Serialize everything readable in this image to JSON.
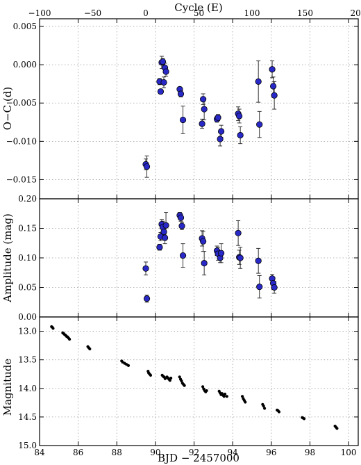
{
  "chart_data": [
    {
      "type": "scatter",
      "panel": "top",
      "ylabel": "O−C (d)",
      "xlabel_top": "Cycle (E)",
      "x_top_ticks": [
        "−100",
        "−50",
        "0",
        "50",
        "100",
        "150",
        "200"
      ],
      "x_top_range": [
        -100,
        200
      ],
      "y_ticks": [
        "−0.015",
        "−0.010",
        "−0.005",
        "0.000",
        "0.005"
      ],
      "ylim": [
        -0.0175,
        0.006
      ],
      "grid": true,
      "marker_color": "#2929c8",
      "x_unit": "cycle",
      "points": [
        {
          "x": 0,
          "y": -0.013,
          "err": 0.0007
        },
        {
          "x": 1,
          "y": -0.0133,
          "err": 0.0014
        },
        {
          "x": 13,
          "y": -0.0022,
          "err": 0.0004
        },
        {
          "x": 14,
          "y": -0.0035,
          "err": 0.0003
        },
        {
          "x": 15,
          "y": 0.0003,
          "err": 0.0008
        },
        {
          "x": 16,
          "y": 0.0004,
          "err": 0.0004
        },
        {
          "x": 17,
          "y": -0.0023,
          "err": 0.0007
        },
        {
          "x": 18,
          "y": -0.0004,
          "err": 0.0006
        },
        {
          "x": 19,
          "y": -0.0009,
          "err": 0.0006
        },
        {
          "x": 32,
          "y": -0.0032,
          "err": 0.0003
        },
        {
          "x": 33,
          "y": -0.0038,
          "err": 0.0004
        },
        {
          "x": 35,
          "y": -0.0072,
          "err": 0.0018
        },
        {
          "x": 53,
          "y": -0.0077,
          "err": 0.0006
        },
        {
          "x": 54,
          "y": -0.0045,
          "err": 0.0007
        },
        {
          "x": 55,
          "y": -0.0058,
          "err": 0.0014
        },
        {
          "x": 67,
          "y": -0.0071,
          "err": 0.0004
        },
        {
          "x": 68,
          "y": -0.0069,
          "err": 0.0004
        },
        {
          "x": 70,
          "y": -0.0097,
          "err": 0.0009
        },
        {
          "x": 71,
          "y": -0.0087,
          "err": 0.0008
        },
        {
          "x": 87,
          "y": -0.0064,
          "err": 0.0009
        },
        {
          "x": 88,
          "y": -0.0067,
          "err": 0.0009
        },
        {
          "x": 89,
          "y": -0.0092,
          "err": 0.0011
        },
        {
          "x": 106,
          "y": -0.0022,
          "err": 0.0027
        },
        {
          "x": 107,
          "y": -0.0078,
          "err": 0.0017
        },
        {
          "x": 119,
          "y": -0.0006,
          "err": 0.0011
        },
        {
          "x": 120,
          "y": -0.0028,
          "err": 0.0012
        },
        {
          "x": 121,
          "y": -0.004,
          "err": 0.0018
        }
      ]
    },
    {
      "type": "scatter",
      "panel": "middle",
      "ylabel": "Amplitude (mag)",
      "y_ticks": [
        "0.00",
        "0.05",
        "0.10",
        "0.15",
        "0.20"
      ],
      "ylim": [
        0,
        0.2
      ],
      "grid": true,
      "marker_color": "#2929c8",
      "x_unit": "cycle",
      "points": [
        {
          "x": 0,
          "y": 0.082,
          "err": 0.011
        },
        {
          "x": 1,
          "y": 0.031,
          "err": 0.006
        },
        {
          "x": 13,
          "y": 0.118,
          "err": 0.005
        },
        {
          "x": 14,
          "y": 0.136,
          "err": 0.007
        },
        {
          "x": 15,
          "y": 0.157,
          "err": 0.008
        },
        {
          "x": 16,
          "y": 0.152,
          "err": 0.01
        },
        {
          "x": 17,
          "y": 0.144,
          "err": 0.011
        },
        {
          "x": 18,
          "y": 0.134,
          "err": 0.01
        },
        {
          "x": 19,
          "y": 0.155,
          "err": 0.022
        },
        {
          "x": 32,
          "y": 0.172,
          "err": 0.005
        },
        {
          "x": 33,
          "y": 0.168,
          "err": 0.006
        },
        {
          "x": 34,
          "y": 0.154,
          "err": 0.006
        },
        {
          "x": 35,
          "y": 0.104,
          "err": 0.02
        },
        {
          "x": 53,
          "y": 0.133,
          "err": 0.013
        },
        {
          "x": 54,
          "y": 0.128,
          "err": 0.017
        },
        {
          "x": 55,
          "y": 0.091,
          "err": 0.02
        },
        {
          "x": 67,
          "y": 0.112,
          "err": 0.008
        },
        {
          "x": 68,
          "y": 0.107,
          "err": 0.011
        },
        {
          "x": 70,
          "y": 0.1,
          "err": 0.008
        },
        {
          "x": 71,
          "y": 0.108,
          "err": 0.016
        },
        {
          "x": 87,
          "y": 0.142,
          "err": 0.021
        },
        {
          "x": 88,
          "y": 0.101,
          "err": 0.012
        },
        {
          "x": 89,
          "y": 0.1,
          "err": 0.018
        },
        {
          "x": 106,
          "y": 0.095,
          "err": 0.021
        },
        {
          "x": 107,
          "y": 0.051,
          "err": 0.019
        },
        {
          "x": 119,
          "y": 0.065,
          "err": 0.007
        },
        {
          "x": 120,
          "y": 0.057,
          "err": 0.01
        },
        {
          "x": 121,
          "y": 0.05,
          "err": 0.01
        }
      ]
    },
    {
      "type": "scatter",
      "panel": "bottom",
      "ylabel": "Magnitude",
      "xlabel": "BJD − 2457000",
      "x_ticks": [
        "84",
        "86",
        "88",
        "90",
        "92",
        "94",
        "96",
        "98",
        "100"
      ],
      "xlim": [
        84,
        100.5
      ],
      "y_ticks": [
        "13.0",
        "13.5",
        "14.0",
        "14.5",
        "15.0"
      ],
      "ylim": [
        15.0,
        12.75
      ],
      "y_inverted": true,
      "grid": true,
      "marker_color": "#000000",
      "points": [
        [
          84.62,
          12.92
        ],
        [
          84.66,
          12.93
        ],
        [
          84.7,
          12.95
        ],
        [
          85.2,
          13.03
        ],
        [
          85.25,
          13.04
        ],
        [
          85.3,
          13.06
        ],
        [
          85.35,
          13.07
        ],
        [
          85.4,
          13.09
        ],
        [
          85.45,
          13.1
        ],
        [
          85.5,
          13.12
        ],
        [
          85.55,
          13.14
        ],
        [
          86.5,
          13.27
        ],
        [
          86.55,
          13.29
        ],
        [
          86.6,
          13.31
        ],
        [
          88.25,
          13.52
        ],
        [
          88.3,
          13.54
        ],
        [
          88.4,
          13.56
        ],
        [
          88.5,
          13.58
        ],
        [
          88.6,
          13.6
        ],
        [
          89.62,
          13.7
        ],
        [
          89.65,
          13.73
        ],
        [
          89.7,
          13.75
        ],
        [
          89.75,
          13.77
        ],
        [
          90.35,
          13.77
        ],
        [
          90.4,
          13.79
        ],
        [
          90.45,
          13.8
        ],
        [
          90.5,
          13.83
        ],
        [
          90.6,
          13.8
        ],
        [
          90.65,
          13.82
        ],
        [
          90.7,
          13.84
        ],
        [
          90.75,
          13.86
        ],
        [
          90.8,
          13.82
        ],
        [
          91.25,
          13.8
        ],
        [
          91.3,
          13.84
        ],
        [
          91.35,
          13.87
        ],
        [
          91.4,
          13.91
        ],
        [
          91.45,
          13.93
        ],
        [
          91.5,
          13.95
        ],
        [
          92.45,
          13.97
        ],
        [
          92.5,
          14.01
        ],
        [
          92.55,
          14.04
        ],
        [
          92.6,
          14.06
        ],
        [
          92.65,
          14.04
        ],
        [
          93.3,
          14.05
        ],
        [
          93.35,
          14.08
        ],
        [
          93.4,
          14.11
        ],
        [
          93.45,
          14.09
        ],
        [
          93.5,
          14.12
        ],
        [
          93.55,
          14.14
        ],
        [
          93.6,
          14.1
        ],
        [
          93.7,
          14.14
        ],
        [
          94.5,
          14.14
        ],
        [
          94.55,
          14.18
        ],
        [
          94.6,
          14.21
        ],
        [
          94.65,
          14.24
        ],
        [
          95.55,
          14.28
        ],
        [
          95.6,
          14.31
        ],
        [
          95.65,
          14.35
        ],
        [
          96.3,
          14.38
        ],
        [
          96.35,
          14.39
        ],
        [
          96.4,
          14.41
        ],
        [
          97.6,
          14.51
        ],
        [
          97.65,
          14.52
        ],
        [
          97.7,
          14.53
        ],
        [
          99.3,
          14.66
        ],
        [
          99.35,
          14.68
        ],
        [
          99.4,
          14.7
        ]
      ]
    }
  ]
}
